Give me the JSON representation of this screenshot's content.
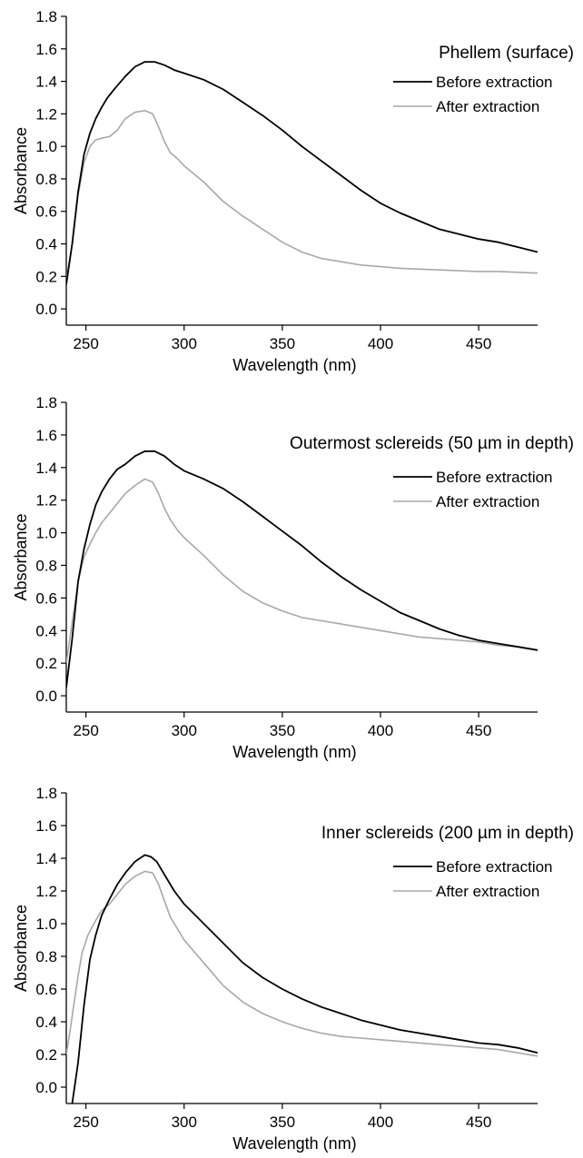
{
  "chart_data": [
    {
      "type": "line",
      "title": "Phellem  (surface)",
      "xlabel": "Wavelength (nm)",
      "ylabel": "Absorbance",
      "xlim": [
        240,
        480
      ],
      "ylim": [
        -0.1,
        1.8
      ],
      "xticks": [
        "250",
        "300",
        "350",
        "400",
        "450"
      ],
      "yticks": [
        "0.0",
        "0.2",
        "0.4",
        "0.6",
        "0.8",
        "1.0",
        "1.2",
        "1.4",
        "1.6",
        "1.8"
      ],
      "grid": false,
      "legend": "right",
      "series": [
        {
          "name": "Before extraction",
          "color": "#000000",
          "x": [
            240,
            243,
            246,
            249,
            252,
            255,
            258,
            261,
            265,
            270,
            275,
            280,
            285,
            290,
            295,
            300,
            310,
            320,
            330,
            340,
            350,
            360,
            370,
            380,
            390,
            400,
            410,
            420,
            430,
            440,
            450,
            460,
            470,
            480
          ],
          "y": [
            0.15,
            0.4,
            0.72,
            0.95,
            1.08,
            1.17,
            1.24,
            1.3,
            1.36,
            1.43,
            1.49,
            1.52,
            1.52,
            1.5,
            1.47,
            1.45,
            1.41,
            1.35,
            1.27,
            1.19,
            1.1,
            1.0,
            0.91,
            0.82,
            0.73,
            0.65,
            0.59,
            0.54,
            0.49,
            0.46,
            0.43,
            0.41,
            0.38,
            0.35
          ]
        },
        {
          "name": "After extraction",
          "color": "#a8a8a8",
          "x": [
            240,
            243,
            246,
            249,
            252,
            255,
            258,
            262,
            266,
            270,
            275,
            280,
            284,
            287,
            290,
            293,
            297,
            300,
            310,
            320,
            330,
            340,
            350,
            360,
            370,
            380,
            390,
            400,
            410,
            420,
            430,
            440,
            450,
            460,
            470,
            480
          ],
          "y": [
            0.18,
            0.4,
            0.7,
            0.9,
            1.0,
            1.04,
            1.05,
            1.06,
            1.1,
            1.17,
            1.21,
            1.22,
            1.2,
            1.12,
            1.03,
            0.96,
            0.92,
            0.88,
            0.78,
            0.66,
            0.57,
            0.49,
            0.41,
            0.35,
            0.31,
            0.29,
            0.27,
            0.26,
            0.25,
            0.245,
            0.24,
            0.235,
            0.23,
            0.23,
            0.225,
            0.22
          ]
        }
      ]
    },
    {
      "type": "line",
      "title": "Outermost sclereids (50 µm in depth)",
      "xlabel": "Wavelength (nm)",
      "ylabel": "Absorbance",
      "xlim": [
        240,
        480
      ],
      "ylim": [
        -0.1,
        1.8
      ],
      "xticks": [
        "250",
        "300",
        "350",
        "400",
        "450"
      ],
      "yticks": [
        "0.0",
        "0.2",
        "0.4",
        "0.6",
        "0.8",
        "1.0",
        "1.2",
        "1.4",
        "1.6",
        "1.8"
      ],
      "grid": false,
      "legend": "right",
      "series": [
        {
          "name": "Before extraction",
          "color": "#000000",
          "x": [
            240,
            243,
            246,
            249,
            252,
            255,
            258,
            262,
            266,
            270,
            275,
            280,
            285,
            290,
            295,
            300,
            310,
            320,
            330,
            340,
            350,
            360,
            370,
            380,
            390,
            400,
            410,
            420,
            430,
            440,
            450,
            460,
            470,
            480
          ],
          "y": [
            0.05,
            0.35,
            0.7,
            0.9,
            1.05,
            1.17,
            1.25,
            1.33,
            1.39,
            1.42,
            1.47,
            1.5,
            1.5,
            1.47,
            1.42,
            1.38,
            1.33,
            1.27,
            1.19,
            1.1,
            1.01,
            0.92,
            0.82,
            0.73,
            0.65,
            0.58,
            0.51,
            0.46,
            0.41,
            0.37,
            0.34,
            0.32,
            0.3,
            0.28
          ]
        },
        {
          "name": "After extraction",
          "color": "#a8a8a8",
          "x": [
            240,
            243,
            246,
            249,
            252,
            255,
            258,
            262,
            266,
            270,
            275,
            280,
            284,
            287,
            290,
            293,
            297,
            300,
            310,
            320,
            330,
            340,
            350,
            360,
            370,
            380,
            390,
            400,
            410,
            420,
            430,
            440,
            450,
            460,
            470,
            480
          ],
          "y": [
            0.2,
            0.45,
            0.7,
            0.85,
            0.93,
            1.0,
            1.06,
            1.12,
            1.18,
            1.24,
            1.29,
            1.33,
            1.31,
            1.24,
            1.15,
            1.08,
            1.01,
            0.97,
            0.86,
            0.74,
            0.64,
            0.57,
            0.52,
            0.48,
            0.46,
            0.44,
            0.42,
            0.4,
            0.38,
            0.36,
            0.35,
            0.34,
            0.33,
            0.31,
            0.3,
            0.28
          ]
        }
      ]
    },
    {
      "type": "line",
      "title": "Inner sclereids (200 µm in depth)",
      "xlabel": "Wavelength (nm)",
      "ylabel": "Absorbance",
      "xlim": [
        240,
        480
      ],
      "ylim": [
        -0.1,
        1.8
      ],
      "xticks": [
        "250",
        "300",
        "350",
        "400",
        "450"
      ],
      "yticks": [
        "0.0",
        "0.2",
        "0.4",
        "0.6",
        "0.8",
        "1.0",
        "1.2",
        "1.4",
        "1.6",
        "1.8"
      ],
      "grid": false,
      "legend": "right",
      "series": [
        {
          "name": "Before extraction",
          "color": "#000000",
          "x": [
            243,
            246,
            249,
            252,
            255,
            258,
            262,
            266,
            270,
            275,
            280,
            283,
            286,
            290,
            295,
            300,
            310,
            320,
            330,
            340,
            350,
            360,
            370,
            380,
            390,
            400,
            410,
            420,
            430,
            440,
            450,
            460,
            470,
            480
          ],
          "y": [
            -0.1,
            0.15,
            0.5,
            0.78,
            0.93,
            1.05,
            1.15,
            1.24,
            1.31,
            1.38,
            1.42,
            1.41,
            1.38,
            1.3,
            1.2,
            1.12,
            1.0,
            0.88,
            0.76,
            0.67,
            0.6,
            0.54,
            0.49,
            0.45,
            0.41,
            0.38,
            0.35,
            0.33,
            0.31,
            0.29,
            0.27,
            0.26,
            0.24,
            0.21
          ]
        },
        {
          "name": "After extraction",
          "color": "#a8a8a8",
          "x": [
            240,
            242,
            244,
            246,
            248,
            251,
            255,
            258,
            262,
            266,
            270,
            275,
            280,
            284,
            287,
            290,
            293,
            297,
            300,
            310,
            320,
            330,
            340,
            350,
            360,
            370,
            380,
            390,
            400,
            410,
            420,
            430,
            440,
            450,
            460,
            470,
            480
          ],
          "y": [
            0.2,
            0.35,
            0.52,
            0.68,
            0.82,
            0.93,
            1.02,
            1.08,
            1.12,
            1.18,
            1.24,
            1.29,
            1.32,
            1.31,
            1.24,
            1.14,
            1.04,
            0.96,
            0.9,
            0.76,
            0.62,
            0.52,
            0.45,
            0.4,
            0.36,
            0.33,
            0.31,
            0.3,
            0.29,
            0.28,
            0.27,
            0.26,
            0.25,
            0.24,
            0.23,
            0.21,
            0.19
          ]
        }
      ]
    }
  ]
}
